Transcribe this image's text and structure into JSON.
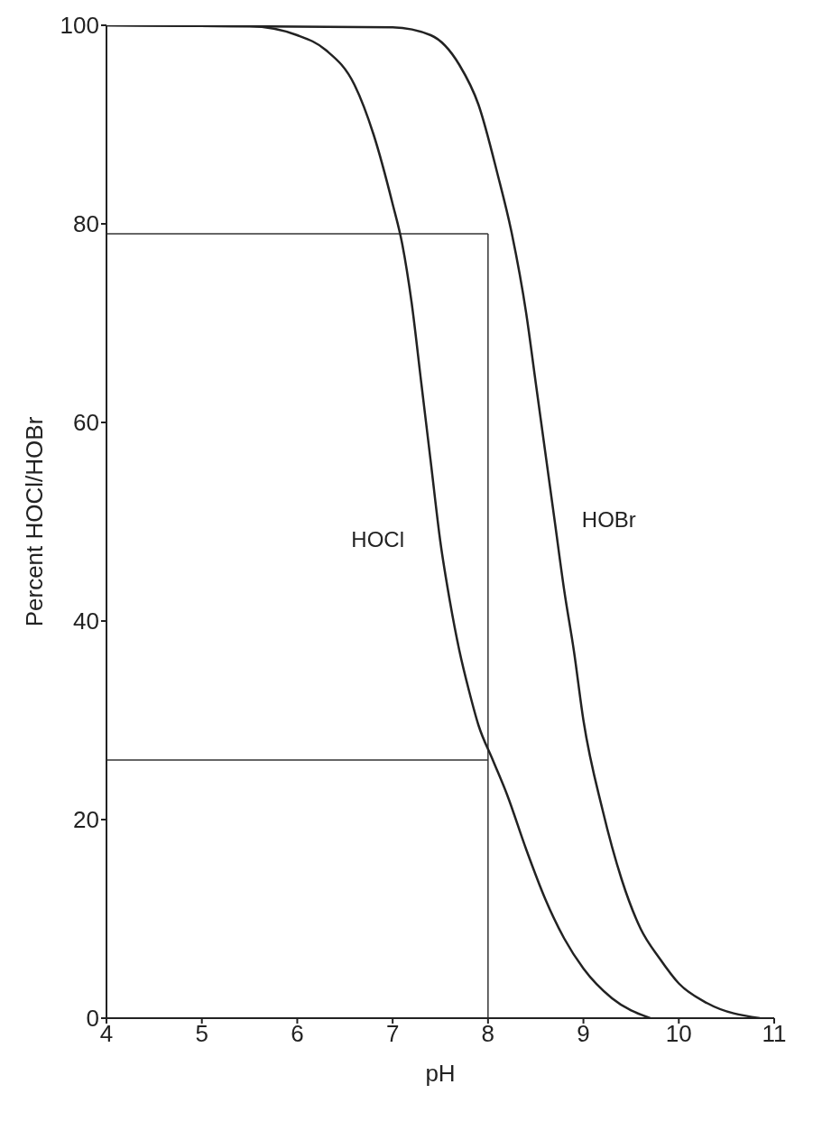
{
  "chart_data": {
    "type": "line",
    "xlabel": "pH",
    "ylabel": "Percent HOCl/HOBr",
    "xlim": [
      4,
      11
    ],
    "xticks": [
      4,
      5,
      6,
      7,
      8,
      9,
      10,
      11
    ],
    "ylim": [
      0,
      100
    ],
    "yticks": [
      0,
      20,
      40,
      60,
      80,
      100
    ],
    "grid": false,
    "legend": false,
    "marker": "none",
    "line_style": "solid",
    "series": [
      {
        "name": "HOCl",
        "color": "#222222",
        "x": [
          4,
          5.5,
          6,
          6.3,
          6.6,
          6.8,
          7,
          7.1,
          7.2,
          7.3,
          7.4,
          7.5,
          7.6,
          7.7,
          7.8,
          7.9,
          8.05,
          8.2,
          8.4,
          8.6,
          8.8,
          9,
          9.3,
          9.7
        ],
        "values": [
          100,
          99.9,
          99,
          97.5,
          94,
          89,
          82,
          78,
          72,
          64,
          56,
          48,
          42,
          37,
          33,
          29.5,
          26,
          22.5,
          17,
          12,
          8,
          5,
          2,
          0
        ]
      },
      {
        "name": "HOBr",
        "color": "#222222",
        "x": [
          4,
          7,
          7.4,
          7.7,
          7.9,
          8.1,
          8.25,
          8.4,
          8.5,
          8.6,
          8.7,
          8.8,
          8.9,
          9,
          9.2,
          9.4,
          9.6,
          9.8,
          10,
          10.3,
          10.85
        ],
        "values": [
          100,
          99.8,
          99,
          96,
          92,
          85,
          79,
          71,
          64,
          57,
          50,
          43,
          37,
          30,
          21,
          14,
          9,
          6,
          3.5,
          1.5,
          0
        ]
      }
    ],
    "ref_lines": [
      {
        "axis": "y",
        "value": 79,
        "color": "#333333"
      },
      {
        "axis": "y",
        "value": 26,
        "color": "#333333"
      },
      {
        "axis": "x",
        "value": 8,
        "color": "#333333"
      }
    ]
  }
}
